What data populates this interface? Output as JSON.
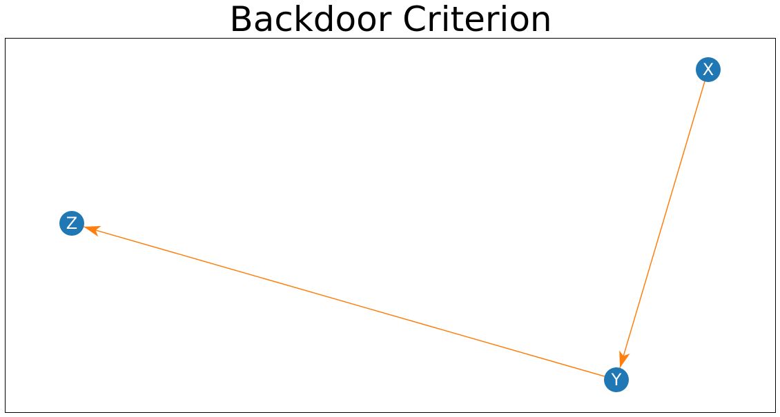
{
  "title": "Backdoor Criterion",
  "colors": {
    "node_fill": "#1f77b4",
    "node_label": "#ffffff",
    "edge": "#ff7f0e",
    "frame": "#000000",
    "background": "#ffffff"
  },
  "graph": {
    "nodes": [
      {
        "id": "X",
        "label": "X"
      },
      {
        "id": "Y",
        "label": "Y"
      },
      {
        "id": "Z",
        "label": "Z"
      }
    ],
    "edges": [
      {
        "from": "X",
        "to": "Y"
      },
      {
        "from": "Y",
        "to": "Z"
      }
    ]
  }
}
